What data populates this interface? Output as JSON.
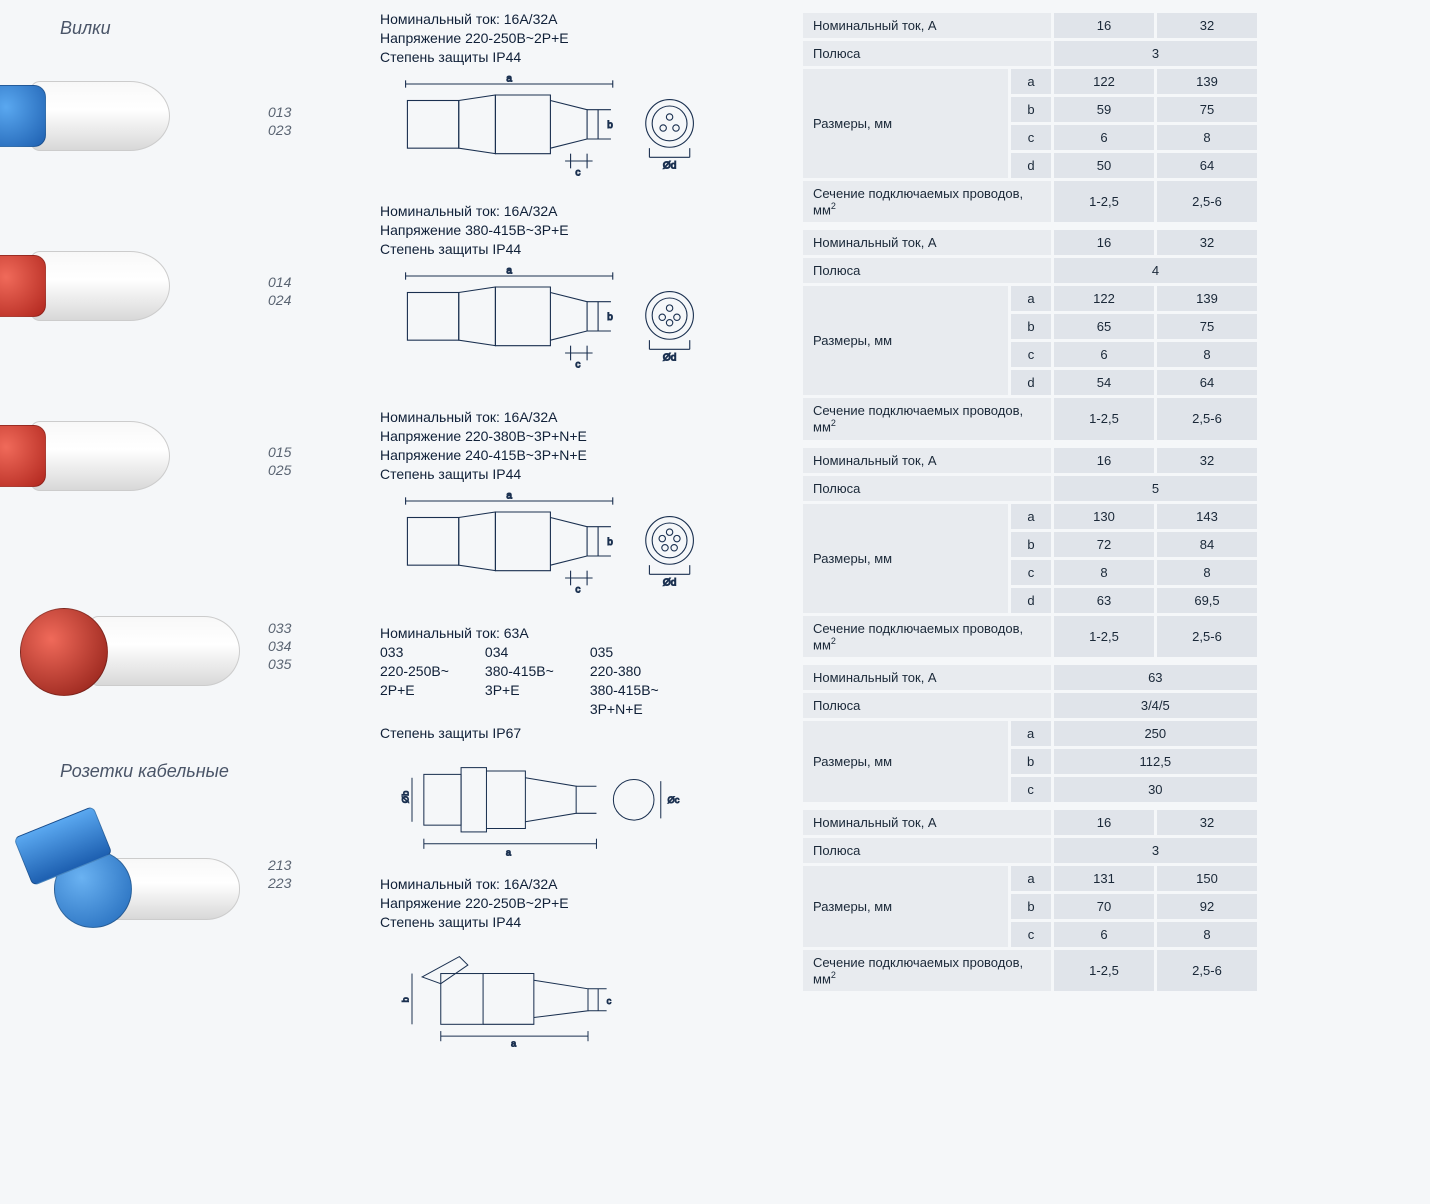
{
  "titles": {
    "plugs": "Вилки",
    "sockets": "Розетки кабельные"
  },
  "products": [
    {
      "codes": [
        "013",
        "023"
      ],
      "cap_color": "blue"
    },
    {
      "codes": [
        "014",
        "024"
      ],
      "cap_color": "red"
    },
    {
      "codes": [
        "015",
        "025"
      ],
      "cap_color": "red"
    },
    {
      "codes": [
        "033",
        "034",
        "035"
      ],
      "big": true
    },
    {
      "codes": [
        "213",
        "223"
      ],
      "socket": true
    }
  ],
  "specs": [
    {
      "lines": [
        "Номинальный ток: 16А/32А",
        "Напряжение 220-250В~2P+E",
        "Степень защиты IP44"
      ],
      "diag": {
        "a": "a",
        "b": "b",
        "c": "c",
        "d": "Ød",
        "pins": 3
      }
    },
    {
      "lines": [
        "Номинальный ток: 16А/32А",
        "Напряжение 380-415В~3P+E",
        "Степень защиты IP44"
      ],
      "diag": {
        "a": "a",
        "b": "b",
        "c": "c",
        "d": "Ød",
        "pins": 4
      }
    },
    {
      "lines": [
        "Номинальный ток: 16А/32А",
        "Напряжение 220-380В~3P+N+E",
        "Напряжение 240-415В~3P+N+E",
        "Степень защиты IP44"
      ],
      "diag": {
        "a": "a",
        "b": "b",
        "c": "c",
        "d": "Ød",
        "pins": 5
      }
    },
    {
      "header": "Номинальный ток: 63А",
      "cols": [
        {
          "c": "033",
          "v": "220-250В~",
          "p": "2P+E"
        },
        {
          "c": "034",
          "v": "380-415В~",
          "p": "3P+E"
        },
        {
          "c": "035",
          "v": "220-380",
          "v2": "380-415В~",
          "p": "3P+N+E"
        }
      ],
      "protection": "Степень защиты IP67",
      "diag67": {
        "a": "a",
        "b": "Øb",
        "c": "Øc"
      }
    },
    {
      "lines": [
        "Номинальный ток: 16А/32А",
        "Напряжение 220-250В~2P+E",
        "Степень защиты IP44"
      ],
      "diag_socket": {
        "a": "a",
        "b": "b",
        "c": "c"
      }
    }
  ],
  "tables": {
    "labels": {
      "nominal": "Номинальный ток, А",
      "poles": "Полюса",
      "dims": "Размеры, мм",
      "wire": "Сечение подключаемых проводов, мм",
      "wire_sup": "2"
    },
    "groups": [
      {
        "nominal": [
          "16",
          "32"
        ],
        "poles": "3",
        "rows": [
          {
            "k": "a",
            "v": [
              "122",
              "139"
            ]
          },
          {
            "k": "b",
            "v": [
              "59",
              "75"
            ]
          },
          {
            "k": "c",
            "v": [
              "6",
              "8"
            ]
          },
          {
            "k": "d",
            "v": [
              "50",
              "64"
            ]
          }
        ],
        "wire": [
          "1-2,5",
          "2,5-6"
        ]
      },
      {
        "nominal": [
          "16",
          "32"
        ],
        "poles": "4",
        "rows": [
          {
            "k": "a",
            "v": [
              "122",
              "139"
            ]
          },
          {
            "k": "b",
            "v": [
              "65",
              "75"
            ]
          },
          {
            "k": "c",
            "v": [
              "6",
              "8"
            ]
          },
          {
            "k": "d",
            "v": [
              "54",
              "64"
            ]
          }
        ],
        "wire": [
          "1-2,5",
          "2,5-6"
        ]
      },
      {
        "nominal": [
          "16",
          "32"
        ],
        "poles": "5",
        "rows": [
          {
            "k": "a",
            "v": [
              "130",
              "143"
            ]
          },
          {
            "k": "b",
            "v": [
              "72",
              "84"
            ]
          },
          {
            "k": "c",
            "v": [
              "8",
              "8"
            ]
          },
          {
            "k": "d",
            "v": [
              "63",
              "69,5"
            ]
          }
        ],
        "wire": [
          "1-2,5",
          "2,5-6"
        ]
      },
      {
        "nominal_single": "63",
        "poles": "3/4/5",
        "rows": [
          {
            "k": "a",
            "v_single": "250"
          },
          {
            "k": "b",
            "v_single": "112,5"
          },
          {
            "k": "c",
            "v_single": "30"
          }
        ]
      },
      {
        "nominal": [
          "16",
          "32"
        ],
        "poles": "3",
        "rows": [
          {
            "k": "a",
            "v": [
              "131",
              "150"
            ]
          },
          {
            "k": "b",
            "v": [
              "70",
              "92"
            ]
          },
          {
            "k": "c",
            "v": [
              "6",
              "8"
            ]
          }
        ],
        "wire": [
          "1-2,5",
          "2,5-6"
        ]
      }
    ]
  },
  "colors": {
    "table_cell": "#e0e4ea",
    "line": "#1a3050"
  }
}
